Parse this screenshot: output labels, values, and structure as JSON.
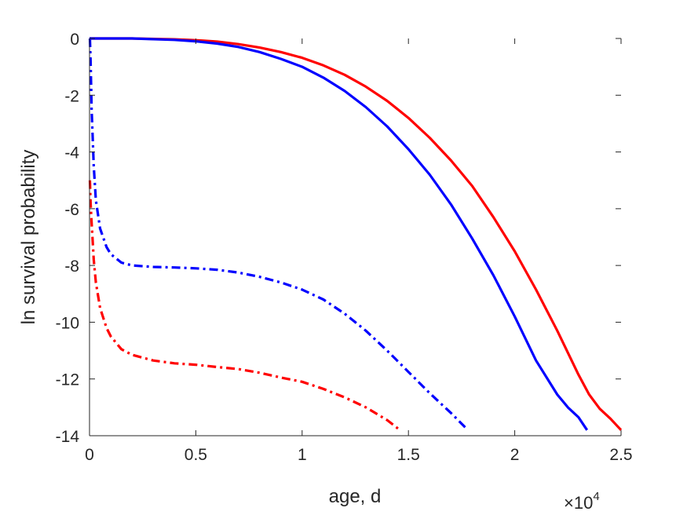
{
  "chart_data": {
    "type": "line",
    "xlabel": "age, d",
    "ylabel": "ln survival probability",
    "x_multiplier": {
      "base": "×10",
      "exponent": "4"
    },
    "xlim": [
      0,
      25000
    ],
    "ylim": [
      -14,
      0
    ],
    "xticks": [
      {
        "value": 0,
        "label": "0"
      },
      {
        "value": 5000,
        "label": "0.5"
      },
      {
        "value": 10000,
        "label": "1"
      },
      {
        "value": 15000,
        "label": "1.5"
      },
      {
        "value": 20000,
        "label": "2"
      },
      {
        "value": 25000,
        "label": "2.5"
      }
    ],
    "yticks": [
      {
        "value": 0,
        "label": "0"
      },
      {
        "value": -2,
        "label": "-2"
      },
      {
        "value": -4,
        "label": "-4"
      },
      {
        "value": -6,
        "label": "-6"
      },
      {
        "value": -8,
        "label": "-8"
      },
      {
        "value": -10,
        "label": "-10"
      },
      {
        "value": -12,
        "label": "-12"
      },
      {
        "value": -14,
        "label": "-14"
      }
    ],
    "grid": false,
    "legend": "none",
    "series": [
      {
        "color": "#ff0000",
        "style": "solid",
        "x": [
          0,
          2000,
          4000,
          5000,
          6000,
          7000,
          8000,
          9000,
          10000,
          11000,
          12000,
          13000,
          14000,
          15000,
          16000,
          17000,
          18000,
          19000,
          20000,
          21000,
          22000,
          23000,
          23500,
          24000,
          24500,
          25000
        ],
        "y": [
          0,
          0,
          -0.03,
          -0.06,
          -0.11,
          -0.2,
          -0.32,
          -0.48,
          -0.68,
          -0.95,
          -1.28,
          -1.7,
          -2.2,
          -2.8,
          -3.5,
          -4.3,
          -5.2,
          -6.3,
          -7.5,
          -8.85,
          -10.3,
          -11.85,
          -12.55,
          -13.05,
          -13.4,
          -13.8
        ]
      },
      {
        "color": "#0000ff",
        "style": "solid",
        "x": [
          0,
          2000,
          4000,
          5000,
          6000,
          7000,
          8000,
          9000,
          10000,
          11000,
          12000,
          13000,
          14000,
          15000,
          16000,
          17000,
          18000,
          19000,
          20000,
          21000,
          22000,
          22500,
          23000,
          23400
        ],
        "y": [
          0,
          0,
          -0.05,
          -0.1,
          -0.18,
          -0.3,
          -0.48,
          -0.72,
          -1.0,
          -1.38,
          -1.85,
          -2.42,
          -3.1,
          -3.9,
          -4.8,
          -5.85,
          -7.05,
          -8.35,
          -9.8,
          -11.35,
          -12.55,
          -13.0,
          -13.35,
          -13.8
        ]
      },
      {
        "color": "#0000ff",
        "style": "dashdot",
        "x": [
          20,
          50,
          100,
          200,
          300,
          500,
          800,
          1000,
          1500,
          2000,
          3000,
          4000,
          5000,
          6000,
          7000,
          8000,
          9000,
          10000,
          11000,
          12000,
          13000,
          14000,
          15000,
          16000,
          17000,
          17800
        ],
        "y": [
          0,
          -0.8,
          -2.5,
          -4.5,
          -5.7,
          -6.7,
          -7.35,
          -7.6,
          -7.9,
          -8.0,
          -8.05,
          -8.07,
          -8.1,
          -8.15,
          -8.25,
          -8.4,
          -8.6,
          -8.85,
          -9.2,
          -9.7,
          -10.3,
          -11.0,
          -11.75,
          -12.5,
          -13.2,
          -13.8
        ]
      },
      {
        "color": "#ff0000",
        "style": "dashdot",
        "x": [
          20,
          50,
          100,
          200,
          300,
          500,
          800,
          1000,
          1500,
          2000,
          3000,
          4000,
          5000,
          6000,
          7000,
          8000,
          9000,
          10000,
          11000,
          12000,
          13000,
          14000,
          14600
        ],
        "y": [
          -5,
          -5.8,
          -6.5,
          -7.8,
          -8.6,
          -9.5,
          -10.2,
          -10.5,
          -10.95,
          -11.15,
          -11.35,
          -11.45,
          -11.5,
          -11.58,
          -11.65,
          -11.78,
          -11.95,
          -12.1,
          -12.35,
          -12.65,
          -13.0,
          -13.45,
          -13.8
        ]
      }
    ]
  }
}
